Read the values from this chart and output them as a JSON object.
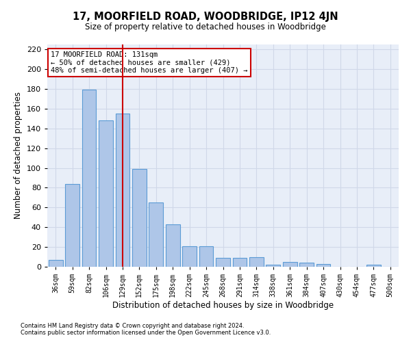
{
  "title": "17, MOORFIELD ROAD, WOODBRIDGE, IP12 4JN",
  "subtitle": "Size of property relative to detached houses in Woodbridge",
  "xlabel": "Distribution of detached houses by size in Woodbridge",
  "ylabel": "Number of detached properties",
  "footnote1": "Contains HM Land Registry data © Crown copyright and database right 2024.",
  "footnote2": "Contains public sector information licensed under the Open Government Licence v3.0.",
  "bar_labels": [
    "36sqm",
    "59sqm",
    "82sqm",
    "106sqm",
    "129sqm",
    "152sqm",
    "175sqm",
    "198sqm",
    "222sqm",
    "245sqm",
    "268sqm",
    "291sqm",
    "314sqm",
    "338sqm",
    "361sqm",
    "384sqm",
    "407sqm",
    "430sqm",
    "454sqm",
    "477sqm",
    "500sqm"
  ],
  "bar_values": [
    7,
    84,
    179,
    148,
    155,
    99,
    65,
    43,
    21,
    21,
    9,
    9,
    10,
    2,
    5,
    4,
    3,
    0,
    0,
    2,
    0
  ],
  "bar_color": "#aec6e8",
  "bar_edge_color": "#5b9bd5",
  "grid_color": "#d0d8e8",
  "bg_color": "#e8eef8",
  "vline_x": 4.0,
  "vline_color": "#cc0000",
  "annotation_text": "17 MOORFIELD ROAD: 131sqm\n← 50% of detached houses are smaller (429)\n48% of semi-detached houses are larger (407) →",
  "annotation_box_color": "#ffffff",
  "annotation_box_edge": "#cc0000",
  "ylim": [
    0,
    225
  ],
  "yticks": [
    0,
    20,
    40,
    60,
    80,
    100,
    120,
    140,
    160,
    180,
    200,
    220
  ]
}
